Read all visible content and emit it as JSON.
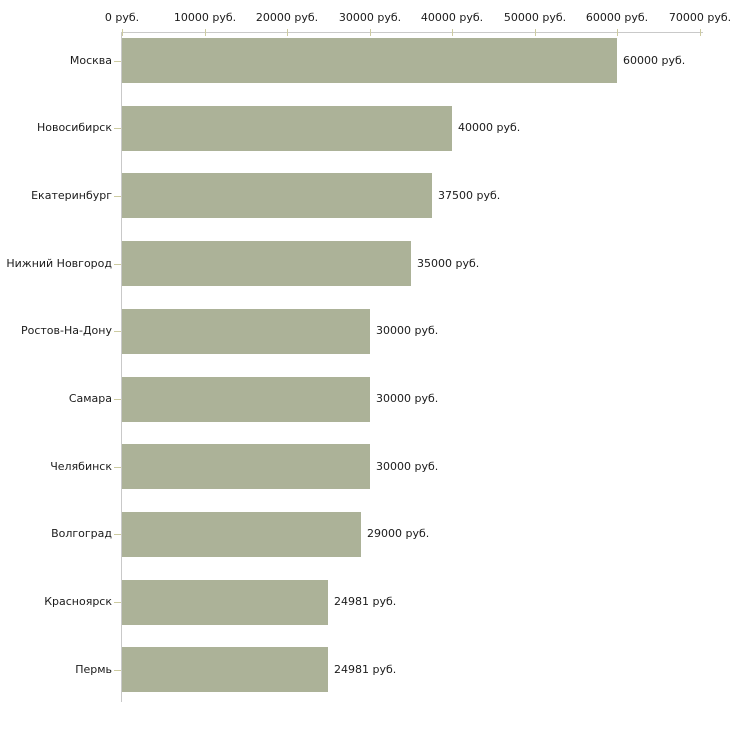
{
  "chart_data": {
    "type": "bar",
    "orientation": "horizontal",
    "title": "",
    "xlabel": "",
    "ylabel": "",
    "unit": "руб.",
    "categories": [
      "Москва",
      "Новосибирск",
      "Екатеринбург",
      "Нижний Новгород",
      "Ростов-На-Дону",
      "Самара",
      "Челябинск",
      "Волгоград",
      "Красноярск",
      "Пермь"
    ],
    "values": [
      60000,
      40000,
      37500,
      35000,
      30000,
      30000,
      30000,
      29000,
      24981,
      24981
    ],
    "value_labels": [
      "60000 руб.",
      "40000 руб.",
      "37500 руб.",
      "35000 руб.",
      "30000 руб.",
      "30000 руб.",
      "30000 руб.",
      "29000 руб.",
      "24981 руб.",
      "24981 руб."
    ],
    "x_ticks": [
      {
        "value": 0,
        "label": "0 руб."
      },
      {
        "value": 10000,
        "label": "10000 руб."
      },
      {
        "value": 20000,
        "label": "20000 руб."
      },
      {
        "value": 30000,
        "label": "30000 руб."
      },
      {
        "value": 40000,
        "label": "40000 руб."
      },
      {
        "value": 50000,
        "label": "50000 руб."
      },
      {
        "value": 60000,
        "label": "60000 руб."
      },
      {
        "value": 70000,
        "label": "70000 руб."
      }
    ],
    "xlim": [
      0,
      70000
    ],
    "grid": false,
    "legend": false,
    "colors": {
      "bar": "#acb298",
      "axis": "#c9c9c9",
      "tick": "#cdcba0",
      "text": "#1b1b1b",
      "background": "#ffffff"
    }
  }
}
